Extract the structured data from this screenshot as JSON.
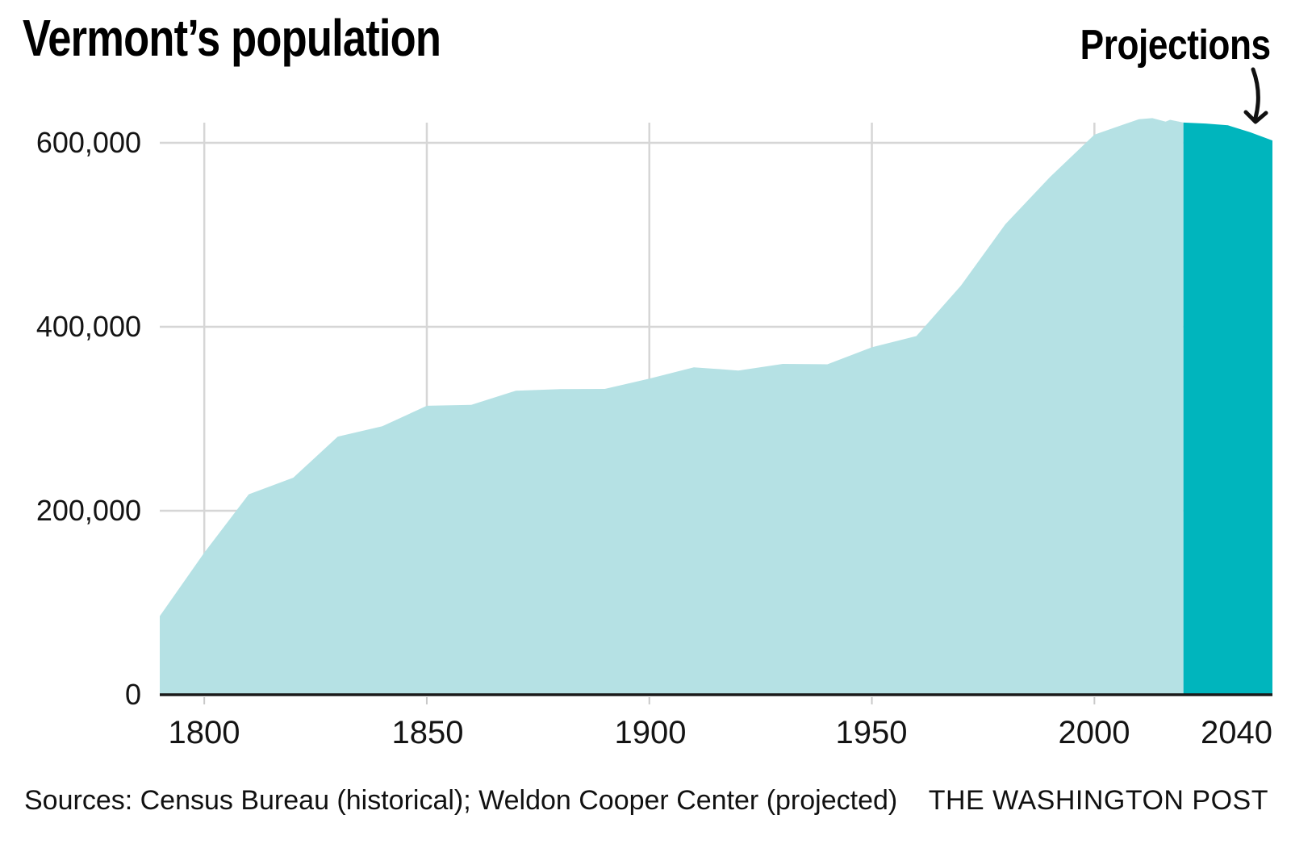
{
  "title": "Vermont’s population",
  "annotation": {
    "label": "Projections"
  },
  "footer": {
    "sources": "Sources: Census Bureau (historical); Weldon Cooper Center (projected)",
    "credit": "THE WASHINGTON POST"
  },
  "colors": {
    "historical_area": "#b5e1e4",
    "projected_area": "#00b5bd",
    "gridline": "#d6d6d6",
    "axis_line": "#1a1a1a",
    "axis_tick": "#c9c9c9",
    "text": "#111111"
  },
  "chart_data": {
    "type": "area",
    "title": "Vermont’s population",
    "xlabel": "",
    "ylabel": "",
    "x_domain": [
      1790,
      2040
    ],
    "y_domain": [
      0,
      660000
    ],
    "grid": true,
    "legend": "none",
    "annotation": "Projections (arrow points to projected segment)",
    "x_ticks": [
      1800,
      1850,
      1900,
      1950,
      2000,
      2040
    ],
    "x_tick_labels": [
      "1800",
      "1850",
      "1900",
      "1950",
      "2000",
      "2040"
    ],
    "x_grid_years": [
      1800,
      1850,
      1900,
      1950,
      2000
    ],
    "y_ticks": [
      0,
      200000,
      400000,
      600000
    ],
    "y_tick_labels": [
      "0",
      "200,000",
      "400,000",
      "600,000"
    ],
    "y_grid_values": [
      200000,
      400000,
      600000
    ],
    "series": [
      {
        "name": "Historical (Census Bureau)",
        "color": "#b5e1e4",
        "points": [
          [
            1790,
            85425
          ],
          [
            1800,
            154465
          ],
          [
            1810,
            217895
          ],
          [
            1820,
            235981
          ],
          [
            1830,
            280652
          ],
          [
            1840,
            291948
          ],
          [
            1850,
            314120
          ],
          [
            1860,
            315098
          ],
          [
            1870,
            330551
          ],
          [
            1880,
            332286
          ],
          [
            1890,
            332422
          ],
          [
            1900,
            343641
          ],
          [
            1910,
            355956
          ],
          [
            1920,
            352428
          ],
          [
            1930,
            359611
          ],
          [
            1940,
            359231
          ],
          [
            1950,
            377747
          ],
          [
            1960,
            389881
          ],
          [
            1970,
            444732
          ],
          [
            1980,
            511456
          ],
          [
            1990,
            562758
          ],
          [
            2000,
            608827
          ],
          [
            2010,
            625741
          ],
          [
            2013,
            626855
          ],
          [
            2016,
            623000
          ],
          [
            2017,
            625000
          ],
          [
            2020,
            622000
          ]
        ]
      },
      {
        "name": "Projected (Weldon Cooper Center)",
        "color": "#00b5bd",
        "points": [
          [
            2020,
            622000
          ],
          [
            2025,
            621000
          ],
          [
            2030,
            619000
          ],
          [
            2035,
            611500
          ],
          [
            2040,
            602500
          ]
        ]
      }
    ]
  }
}
